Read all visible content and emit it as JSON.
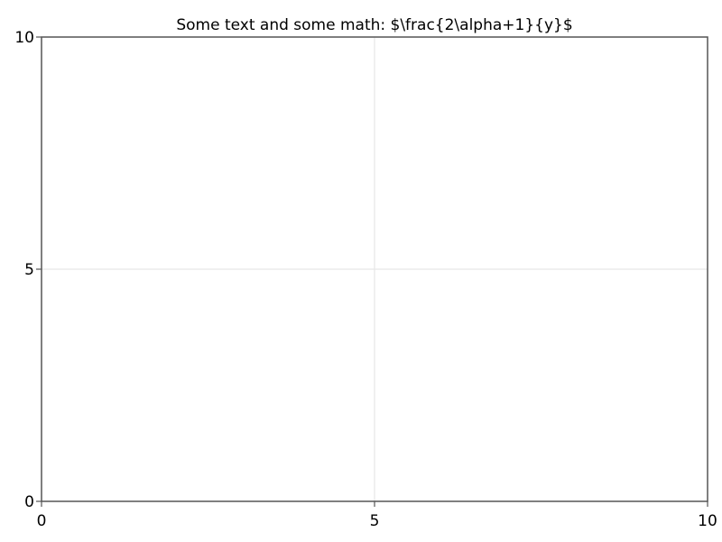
{
  "chart_data": {
    "type": "line",
    "title": "Some text and some math: $\\frac{2\\alpha+1}{y}$",
    "xlabel": "",
    "ylabel": "",
    "xlim": [
      0,
      10
    ],
    "ylim": [
      0,
      10
    ],
    "xticks": [
      0,
      5,
      10
    ],
    "yticks": [
      0,
      5,
      10
    ],
    "xtick_labels": [
      "0",
      "5",
      "10"
    ],
    "ytick_labels": [
      "0",
      "5",
      "10"
    ],
    "grid": true,
    "series": [],
    "colors": {
      "axis": "#555555",
      "grid": "#e6e6e6",
      "text": "#000000",
      "background": "#ffffff"
    }
  }
}
